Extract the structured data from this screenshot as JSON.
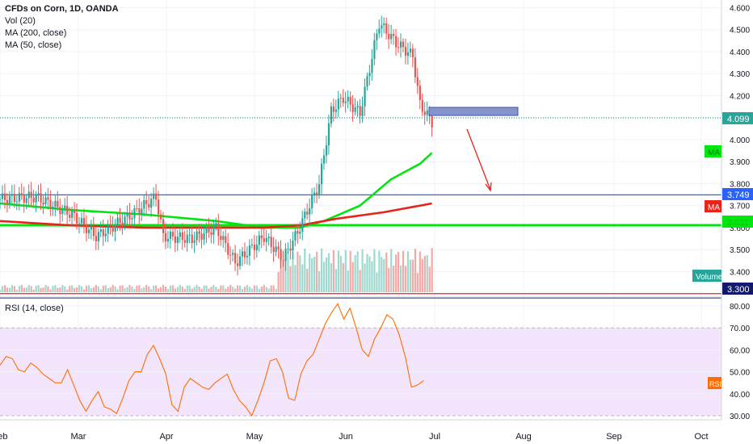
{
  "legend": {
    "title": "CFDs on Corn, 1D, OANDA",
    "vol": "Vol (20)",
    "ma200": "MA (200, close)",
    "ma50": "MA (50, close)",
    "rsi": "RSI (14, close)"
  },
  "price_badges": {
    "last": "4.099",
    "line1": "3.749",
    "ma_tag": "MA",
    "ma50_tag": "MA",
    "green_line": "3.611",
    "volume_tag": "Volume",
    "low": "3.300",
    "rsi_tag": "RSI"
  },
  "colors": {
    "up": "#26a69a",
    "down": "#ef5350",
    "ma50": "#00e60f",
    "ma200": "#e8231a",
    "blue_line": "#2962ff",
    "rsi": "#ff6d00",
    "rsi_bg": "#f3e5fc"
  },
  "chart_data": [
    {
      "type": "candlestick",
      "y_axis": {
        "ticks": [
          "4.600",
          "4.500",
          "4.400",
          "4.300",
          "4.200",
          "4.100",
          "4.000",
          "3.900",
          "3.800",
          "3.700",
          "3.600",
          "3.500",
          "3.400"
        ],
        "range": [
          3.25,
          4.64
        ]
      },
      "x_axis": {
        "ticks": [
          "Feb",
          "Mar",
          "Apr",
          "May",
          "Jun",
          "Jul",
          "Aug",
          "Sep",
          "Oct"
        ]
      },
      "horizontal_lines": [
        {
          "value": 4.099,
          "style": "dotted",
          "color": "#26a69a"
        },
        {
          "value": 3.749,
          "color": "#2962ff"
        },
        {
          "value": 3.611,
          "color": "#00e60f"
        },
        {
          "value": 3.3,
          "color": "#e8231a"
        }
      ],
      "rectangle": {
        "from": "Jul 1",
        "to": "Jul 31",
        "top": 4.14,
        "bottom": 4.11
      },
      "arrow": {
        "from": {
          "date": "Jul 13",
          "value": 4.06
        },
        "to": {
          "date": "Jul 22",
          "value": 3.76
        }
      },
      "series": [
        {
          "name": "MA (50, close)",
          "points": [
            [
              0,
              3.71
            ],
            [
              30,
              3.68
            ],
            [
              60,
              3.66
            ],
            [
              90,
              3.63
            ],
            [
              110,
              3.6
            ],
            [
              125,
              3.6
            ],
            [
              135,
              3.63
            ],
            [
              150,
              3.7
            ],
            [
              163,
              3.82
            ],
            [
              175,
              3.89
            ],
            [
              180,
              3.94
            ]
          ]
        },
        {
          "name": "MA (200, close)",
          "points": [
            [
              0,
              3.63
            ],
            [
              30,
              3.61
            ],
            [
              60,
              3.6
            ],
            [
              90,
              3.6
            ],
            [
              110,
              3.6
            ],
            [
              125,
              3.61
            ],
            [
              140,
              3.64
            ],
            [
              160,
              3.67
            ],
            [
              180,
              3.71
            ]
          ]
        }
      ]
    },
    {
      "type": "line",
      "title": "RSI (14, close)",
      "y_axis": {
        "ticks": [
          "80.00",
          "70.00",
          "60.00",
          "50.00",
          "40.00",
          "30.00"
        ],
        "range": [
          28,
          82
        ]
      },
      "band": [
        30,
        70
      ],
      "values": [
        53,
        57,
        56,
        51,
        50,
        54,
        52,
        49,
        47,
        45,
        45,
        51,
        44,
        37,
        32,
        37,
        41,
        34,
        33,
        31,
        38,
        46,
        50,
        50,
        58,
        62,
        56,
        49,
        35,
        32,
        43,
        47,
        45,
        43,
        42,
        45,
        47,
        49,
        42,
        37,
        34,
        30,
        37,
        45,
        55,
        56,
        50,
        38,
        37,
        49,
        55,
        58,
        65,
        72,
        77,
        81,
        74,
        79,
        70,
        60,
        57,
        65,
        70,
        76,
        74,
        67,
        57,
        43,
        44,
        46
      ]
    }
  ]
}
